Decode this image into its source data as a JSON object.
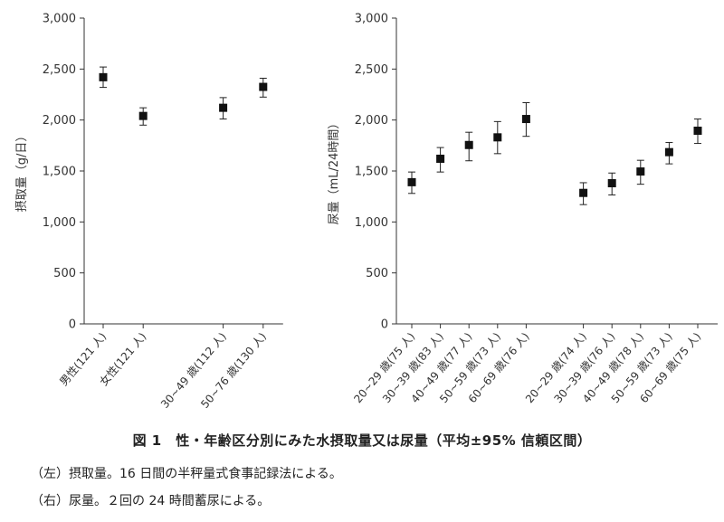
{
  "figure": {
    "caption": "図 1　性・年齢区分別にみた水摂取量又は尿量（平均±95% 信頼区間）",
    "notes": [
      "（左）摂取量。16 日間の半秤量式食事記録法による。",
      "（右）尿量。２回の 24 時間蓄尿による。"
    ]
  },
  "chart_data": [
    {
      "type": "scatter",
      "ylabel": "摂取量（g/日）",
      "ylim": [
        0,
        3000
      ],
      "yticks": [
        0,
        500,
        1000,
        1500,
        2000,
        2500,
        3000
      ],
      "ytick_labels": [
        "0",
        "500",
        "1,000",
        "1,500",
        "2,000",
        "2,500",
        "3,000"
      ],
      "grid": false,
      "errorbars": "95% CI",
      "categories": [
        "男性(121 人)",
        "女性(121 人)",
        "",
        "30~49 歳(112 人)",
        "50~76 歳(130 人)"
      ],
      "values": [
        2420,
        2040,
        null,
        2120,
        2325
      ],
      "lower": [
        2320,
        1950,
        null,
        2010,
        2225
      ],
      "upper": [
        2520,
        2120,
        null,
        2220,
        2410
      ]
    },
    {
      "type": "scatter",
      "ylabel": "尿量（mL/24時間）",
      "ylim": [
        0,
        3000
      ],
      "yticks": [
        0,
        500,
        1000,
        1500,
        2000,
        2500,
        3000
      ],
      "ytick_labels": [
        "0",
        "500",
        "1,000",
        "1,500",
        "2,000",
        "2,500",
        "3,000"
      ],
      "grid": false,
      "errorbars": "95% CI",
      "categories": [
        "20~29 歳(75 人)",
        "30~39 歳(83 人)",
        "40~49 歳(77 人)",
        "50~59 歳(73 人)",
        "60~69 歳(76 人)",
        "",
        "20~29 歳(74 人)",
        "30~39 歳(76 人)",
        "40~49 歳(78 人)",
        "50~59 歳(73 人)",
        "60~69 歳(75 人)"
      ],
      "values": [
        1390,
        1620,
        1755,
        1830,
        2010,
        null,
        1285,
        1380,
        1495,
        1685,
        1895
      ],
      "lower": [
        1280,
        1490,
        1600,
        1670,
        1840,
        null,
        1170,
        1265,
        1370,
        1570,
        1770
      ],
      "upper": [
        1490,
        1730,
        1880,
        1985,
        2170,
        null,
        1385,
        1480,
        1605,
        1780,
        2010
      ]
    }
  ]
}
